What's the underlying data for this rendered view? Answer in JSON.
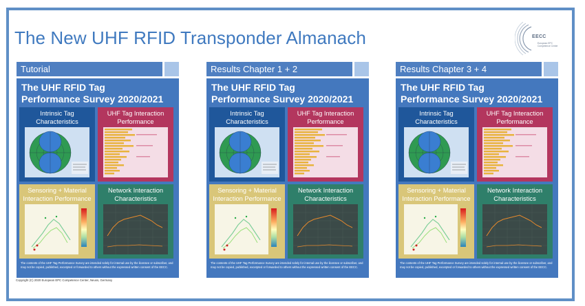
{
  "main_title": "The New UHF RFID Transponder Almanach",
  "logo": {
    "name": "EECC",
    "subtitle": "European EPC Competence Center"
  },
  "columns": [
    {
      "header": "Tutorial"
    },
    {
      "header": "Results Chapter 1 + 2"
    },
    {
      "header": "Results Chapter 3 + 4"
    }
  ],
  "poster": {
    "title_line1": "The UHF RFID Tag",
    "title_line2": "Performance Survey 2020/2021",
    "tiles": {
      "intrinsic": "Intrinsic Tag Characteristics",
      "uhf": "UHF Tag Interaction Performance",
      "sensing": "Sensoring + Material Interaction Performance",
      "network": "Network Interaction Characteristics"
    },
    "disclaimer": "The contents of the UHF Tag Performance Survey are intended solely for internal use by the licensee or subscriber, and may not be copied, published, excerpted or forwarded to others without the expressed written consent of the EECC."
  },
  "copyright": "Copyright (C) 2020 European EPC Competence Center, Neuss, Germany",
  "colors": {
    "frame": "#5f8fc6",
    "title": "#3f79bf",
    "poster": "#4478be",
    "tile_intrinsic": "#1f579b",
    "tile_uhf": "#b3365e",
    "tile_sensing": "#d9c679",
    "tile_network": "#2f7f6a"
  }
}
